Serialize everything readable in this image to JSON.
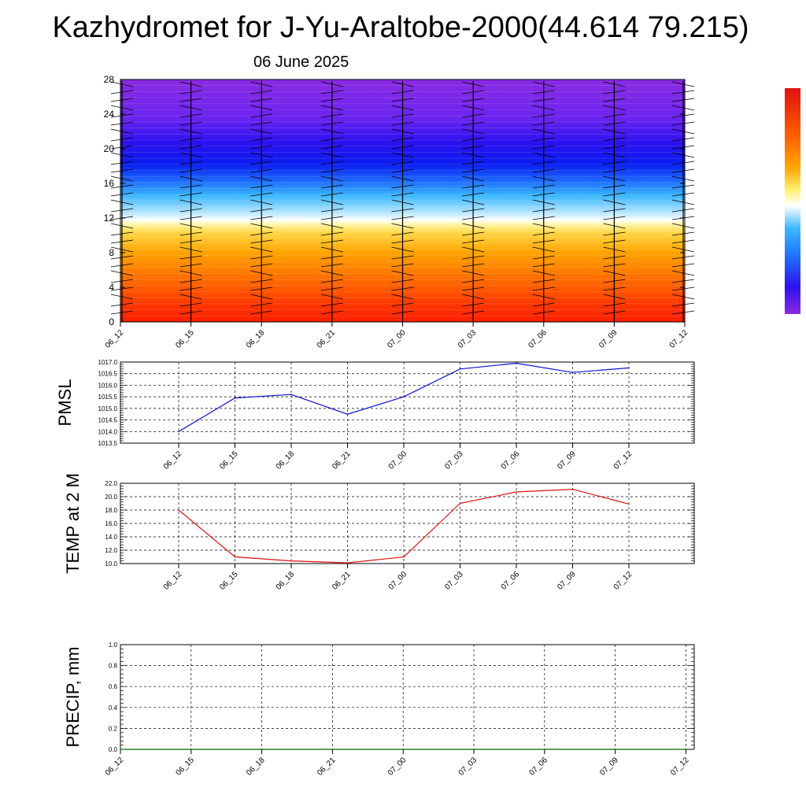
{
  "title": "Kazhydromet for J-Yu-Araltobe-2000(44.614 79.215)",
  "date": "06 June 2025",
  "colors": {
    "pmsl_line": "#1010d0",
    "temp_line": "#e01010",
    "precip_line": "#006400",
    "grid": "#000000"
  },
  "chart_data": [
    {
      "type": "heatmap",
      "name": "cross-section",
      "x_ticks": [
        "06_12",
        "06_15",
        "06_18",
        "06_21",
        "07_00",
        "07_03",
        "07_06",
        "07_09",
        "07_12"
      ],
      "y_ticks": [
        "0",
        "4",
        "8",
        "12",
        "16",
        "20",
        "24",
        "28"
      ],
      "ylim": [
        0,
        28
      ],
      "colorbar": "red-orange-yellow-white-cyan-blue-purple"
    },
    {
      "type": "line",
      "name": "pmsl",
      "ylabel": "PMSL",
      "categories": [
        "06_12",
        "06_15",
        "06_18",
        "06_21",
        "07_00",
        "07_03",
        "07_06",
        "07_09",
        "07_12"
      ],
      "values": [
        1014.0,
        1015.45,
        1015.6,
        1014.75,
        1015.5,
        1016.7,
        1016.95,
        1016.55,
        1016.75
      ],
      "ylim": [
        1013.5,
        1017.0
      ],
      "y_ticks": [
        "1013.5",
        "1014.0",
        "1014.5",
        "1015.0",
        "1015.5",
        "1016.0",
        "1016.5",
        "1017.0"
      ]
    },
    {
      "type": "line",
      "name": "temp",
      "ylabel": "TEMP at 2 M",
      "categories": [
        "06_12",
        "06_15",
        "06_18",
        "06_21",
        "07_00",
        "07_03",
        "07_06",
        "07_09",
        "07_12"
      ],
      "values": [
        18.0,
        11.0,
        10.4,
        10.1,
        11.0,
        19.0,
        20.7,
        21.1,
        18.9
      ],
      "ylim": [
        10.0,
        22.0
      ],
      "y_ticks": [
        "10.0",
        "12.0",
        "14.0",
        "16.0",
        "18.0",
        "20.0",
        "22.0"
      ]
    },
    {
      "type": "line",
      "name": "precip",
      "ylabel": "PRECIP, mm",
      "categories": [
        "06_12",
        "06_15",
        "06_18",
        "06_21",
        "07_00",
        "07_03",
        "07_06",
        "07_09",
        "07_12"
      ],
      "values": [
        0,
        0,
        0,
        0,
        0,
        0,
        0,
        0,
        0
      ],
      "ylim": [
        0,
        1.0
      ],
      "y_ticks": [
        "0.0",
        "0.2",
        "0.4",
        "0.6",
        "0.8",
        "1.0"
      ]
    }
  ]
}
